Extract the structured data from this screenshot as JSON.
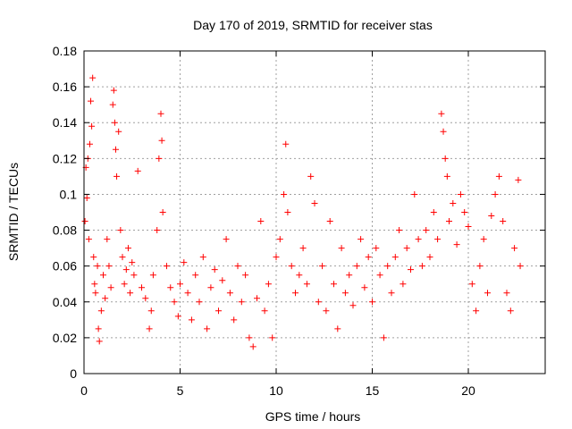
{
  "chart_data": {
    "type": "scatter",
    "title": "Day 170 of 2019, SRMTID for receiver stas",
    "xlabel": "GPS time / hours",
    "ylabel": "SRMTID / TECUs",
    "xlim": [
      0,
      24
    ],
    "ylim": [
      0,
      0.18
    ],
    "x_ticks": [
      0,
      5,
      10,
      15,
      20
    ],
    "x_tick_labels": [
      "0",
      "5",
      "10",
      "15",
      "20"
    ],
    "y_ticks": [
      0,
      0.02,
      0.04,
      0.06,
      0.08,
      0.1,
      0.12,
      0.14,
      0.16,
      0.18
    ],
    "y_tick_labels": [
      "0",
      "0.02",
      "0.04",
      "0.06",
      "0.08",
      "0.1",
      "0.12",
      "0.14",
      "0.16",
      "0.18"
    ],
    "grid": true,
    "marker": "plus",
    "series_color": "#ff0000",
    "series": [
      {
        "points": [
          [
            0.05,
            0.085
          ],
          [
            0.1,
            0.115
          ],
          [
            0.15,
            0.098
          ],
          [
            0.2,
            0.12
          ],
          [
            0.25,
            0.075
          ],
          [
            0.3,
            0.128
          ],
          [
            0.35,
            0.152
          ],
          [
            0.4,
            0.138
          ],
          [
            0.45,
            0.165
          ],
          [
            0.5,
            0.065
          ],
          [
            0.55,
            0.05
          ],
          [
            0.6,
            0.045
          ],
          [
            0.7,
            0.06
          ],
          [
            0.75,
            0.025
          ],
          [
            0.8,
            0.018
          ],
          [
            0.9,
            0.035
          ],
          [
            1.0,
            0.055
          ],
          [
            1.1,
            0.042
          ],
          [
            1.2,
            0.075
          ],
          [
            1.3,
            0.06
          ],
          [
            1.4,
            0.048
          ],
          [
            1.5,
            0.15
          ],
          [
            1.55,
            0.158
          ],
          [
            1.6,
            0.14
          ],
          [
            1.65,
            0.125
          ],
          [
            1.7,
            0.11
          ],
          [
            1.8,
            0.135
          ],
          [
            1.9,
            0.08
          ],
          [
            2.0,
            0.065
          ],
          [
            2.1,
            0.05
          ],
          [
            2.2,
            0.058
          ],
          [
            2.3,
            0.07
          ],
          [
            2.4,
            0.045
          ],
          [
            2.5,
            0.062
          ],
          [
            2.6,
            0.055
          ],
          [
            2.8,
            0.113
          ],
          [
            3.0,
            0.048
          ],
          [
            3.2,
            0.042
          ],
          [
            3.4,
            0.025
          ],
          [
            3.5,
            0.035
          ],
          [
            3.6,
            0.055
          ],
          [
            3.8,
            0.08
          ],
          [
            3.9,
            0.12
          ],
          [
            4.0,
            0.145
          ],
          [
            4.05,
            0.13
          ],
          [
            4.1,
            0.09
          ],
          [
            4.3,
            0.06
          ],
          [
            4.5,
            0.048
          ],
          [
            4.7,
            0.04
          ],
          [
            4.9,
            0.032
          ],
          [
            5.0,
            0.05
          ],
          [
            5.2,
            0.062
          ],
          [
            5.4,
            0.045
          ],
          [
            5.6,
            0.03
          ],
          [
            5.8,
            0.055
          ],
          [
            6.0,
            0.04
          ],
          [
            6.2,
            0.065
          ],
          [
            6.4,
            0.025
          ],
          [
            6.6,
            0.048
          ],
          [
            6.8,
            0.058
          ],
          [
            7.0,
            0.035
          ],
          [
            7.2,
            0.052
          ],
          [
            7.4,
            0.075
          ],
          [
            7.6,
            0.045
          ],
          [
            7.8,
            0.03
          ],
          [
            8.0,
            0.06
          ],
          [
            8.2,
            0.04
          ],
          [
            8.4,
            0.055
          ],
          [
            8.6,
            0.02
          ],
          [
            8.8,
            0.015
          ],
          [
            9.0,
            0.042
          ],
          [
            9.2,
            0.085
          ],
          [
            9.4,
            0.035
          ],
          [
            9.6,
            0.05
          ],
          [
            9.8,
            0.02
          ],
          [
            10.0,
            0.065
          ],
          [
            10.2,
            0.075
          ],
          [
            10.4,
            0.1
          ],
          [
            10.5,
            0.128
          ],
          [
            10.6,
            0.09
          ],
          [
            10.8,
            0.06
          ],
          [
            11.0,
            0.045
          ],
          [
            11.2,
            0.055
          ],
          [
            11.4,
            0.07
          ],
          [
            11.6,
            0.05
          ],
          [
            11.8,
            0.11
          ],
          [
            12.0,
            0.095
          ],
          [
            12.2,
            0.04
          ],
          [
            12.4,
            0.06
          ],
          [
            12.6,
            0.035
          ],
          [
            12.8,
            0.085
          ],
          [
            13.0,
            0.05
          ],
          [
            13.2,
            0.025
          ],
          [
            13.4,
            0.07
          ],
          [
            13.6,
            0.045
          ],
          [
            13.8,
            0.055
          ],
          [
            14.0,
            0.038
          ],
          [
            14.2,
            0.06
          ],
          [
            14.4,
            0.075
          ],
          [
            14.6,
            0.048
          ],
          [
            14.8,
            0.065
          ],
          [
            15.0,
            0.04
          ],
          [
            15.2,
            0.07
          ],
          [
            15.4,
            0.055
          ],
          [
            15.6,
            0.02
          ],
          [
            15.8,
            0.06
          ],
          [
            16.0,
            0.045
          ],
          [
            16.2,
            0.065
          ],
          [
            16.4,
            0.08
          ],
          [
            16.6,
            0.05
          ],
          [
            16.8,
            0.07
          ],
          [
            17.0,
            0.058
          ],
          [
            17.2,
            0.1
          ],
          [
            17.4,
            0.075
          ],
          [
            17.6,
            0.06
          ],
          [
            17.8,
            0.08
          ],
          [
            18.0,
            0.065
          ],
          [
            18.2,
            0.09
          ],
          [
            18.4,
            0.075
          ],
          [
            18.6,
            0.145
          ],
          [
            18.7,
            0.135
          ],
          [
            18.8,
            0.12
          ],
          [
            18.9,
            0.11
          ],
          [
            19.0,
            0.085
          ],
          [
            19.2,
            0.095
          ],
          [
            19.4,
            0.072
          ],
          [
            19.6,
            0.1
          ],
          [
            19.8,
            0.09
          ],
          [
            20.0,
            0.082
          ],
          [
            20.2,
            0.05
          ],
          [
            20.4,
            0.035
          ],
          [
            20.6,
            0.06
          ],
          [
            20.8,
            0.075
          ],
          [
            21.0,
            0.045
          ],
          [
            21.2,
            0.088
          ],
          [
            21.4,
            0.1
          ],
          [
            21.6,
            0.11
          ],
          [
            21.8,
            0.085
          ],
          [
            22.0,
            0.045
          ],
          [
            22.2,
            0.035
          ],
          [
            22.4,
            0.07
          ],
          [
            22.6,
            0.108
          ],
          [
            22.7,
            0.06
          ]
        ]
      }
    ]
  }
}
